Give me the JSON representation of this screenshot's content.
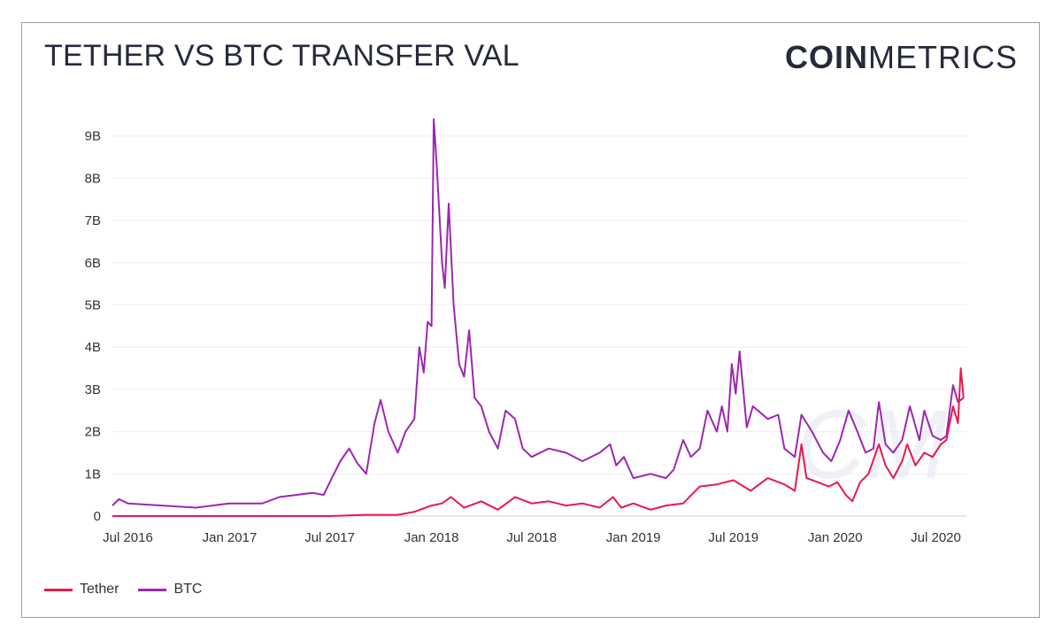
{
  "title": "TETHER VS BTC TRANSFER VAL",
  "logo": {
    "bold": "COIN",
    "light": "METRICS",
    "watermark": "CM"
  },
  "chart_data": {
    "type": "line",
    "title": "TETHER VS BTC TRANSFER VAL",
    "xlabel": "",
    "ylabel": "",
    "ylim": [
      0,
      9.5
    ],
    "yticks": [
      0,
      1,
      2,
      3,
      4,
      5,
      6,
      7,
      8,
      9
    ],
    "ytick_labels": [
      "0",
      "1B",
      "2B",
      "3B",
      "4B",
      "5B",
      "6B",
      "7B",
      "8B",
      "9B"
    ],
    "xticks": [
      "2016-07-01",
      "2017-01-01",
      "2017-07-01",
      "2018-01-01",
      "2018-07-01",
      "2019-01-01",
      "2019-07-01",
      "2020-01-01",
      "2020-07-01"
    ],
    "xtick_labels": [
      "Jul 2016",
      "Jan 2017",
      "Jul 2017",
      "Jan 2018",
      "Jul 2018",
      "Jan 2019",
      "Jul 2019",
      "Jan 2020",
      "Jul 2020"
    ],
    "xlim": [
      "2016-06-03",
      "2020-08-22"
    ],
    "grid": "horizontal",
    "legend": "bottom-left",
    "units": "B (billions USD)",
    "series": [
      {
        "name": "Tether",
        "color": "#e8194f",
        "points": [
          [
            "2016-06-03",
            0.0
          ],
          [
            "2017-07-01",
            0.0
          ],
          [
            "2017-09-01",
            0.03
          ],
          [
            "2017-11-01",
            0.03
          ],
          [
            "2017-12-01",
            0.1
          ],
          [
            "2018-01-01",
            0.25
          ],
          [
            "2018-01-20",
            0.3
          ],
          [
            "2018-02-05",
            0.45
          ],
          [
            "2018-03-01",
            0.2
          ],
          [
            "2018-04-01",
            0.35
          ],
          [
            "2018-05-01",
            0.15
          ],
          [
            "2018-06-01",
            0.45
          ],
          [
            "2018-07-01",
            0.3
          ],
          [
            "2018-08-01",
            0.35
          ],
          [
            "2018-09-01",
            0.25
          ],
          [
            "2018-10-01",
            0.3
          ],
          [
            "2018-11-01",
            0.2
          ],
          [
            "2018-11-25",
            0.45
          ],
          [
            "2018-12-10",
            0.2
          ],
          [
            "2019-01-01",
            0.3
          ],
          [
            "2019-02-01",
            0.15
          ],
          [
            "2019-03-01",
            0.25
          ],
          [
            "2019-04-01",
            0.3
          ],
          [
            "2019-05-01",
            0.7
          ],
          [
            "2019-06-01",
            0.75
          ],
          [
            "2019-07-01",
            0.85
          ],
          [
            "2019-08-01",
            0.6
          ],
          [
            "2019-09-01",
            0.9
          ],
          [
            "2019-10-01",
            0.75
          ],
          [
            "2019-10-20",
            0.6
          ],
          [
            "2019-11-01",
            1.7
          ],
          [
            "2019-11-10",
            0.9
          ],
          [
            "2019-12-01",
            0.8
          ],
          [
            "2019-12-20",
            0.7
          ],
          [
            "2020-01-05",
            0.8
          ],
          [
            "2020-01-20",
            0.5
          ],
          [
            "2020-02-01",
            0.35
          ],
          [
            "2020-02-15",
            0.8
          ],
          [
            "2020-03-01",
            1.0
          ],
          [
            "2020-03-20",
            1.7
          ],
          [
            "2020-04-01",
            1.2
          ],
          [
            "2020-04-15",
            0.9
          ],
          [
            "2020-05-01",
            1.3
          ],
          [
            "2020-05-10",
            1.7
          ],
          [
            "2020-05-25",
            1.2
          ],
          [
            "2020-06-10",
            1.5
          ],
          [
            "2020-06-25",
            1.4
          ],
          [
            "2020-07-10",
            1.7
          ],
          [
            "2020-07-20",
            1.8
          ],
          [
            "2020-08-01",
            2.6
          ],
          [
            "2020-08-10",
            2.2
          ],
          [
            "2020-08-15",
            3.5
          ],
          [
            "2020-08-20",
            2.8
          ]
        ]
      },
      {
        "name": "BTC",
        "color": "#9c27b0",
        "points": [
          [
            "2016-06-03",
            0.25
          ],
          [
            "2016-06-15",
            0.4
          ],
          [
            "2016-07-01",
            0.3
          ],
          [
            "2016-09-01",
            0.25
          ],
          [
            "2016-11-01",
            0.2
          ],
          [
            "2017-01-01",
            0.3
          ],
          [
            "2017-03-01",
            0.3
          ],
          [
            "2017-04-01",
            0.45
          ],
          [
            "2017-05-01",
            0.5
          ],
          [
            "2017-06-01",
            0.55
          ],
          [
            "2017-06-20",
            0.5
          ],
          [
            "2017-07-01",
            0.8
          ],
          [
            "2017-07-20",
            1.3
          ],
          [
            "2017-08-05",
            1.6
          ],
          [
            "2017-08-20",
            1.25
          ],
          [
            "2017-09-05",
            1.0
          ],
          [
            "2017-09-20",
            2.2
          ],
          [
            "2017-10-01",
            2.75
          ],
          [
            "2017-10-15",
            2.0
          ],
          [
            "2017-11-01",
            1.5
          ],
          [
            "2017-11-15",
            2.0
          ],
          [
            "2017-12-01",
            2.3
          ],
          [
            "2017-12-10",
            4.0
          ],
          [
            "2017-12-18",
            3.4
          ],
          [
            "2017-12-25",
            4.6
          ],
          [
            "2018-01-01",
            4.5
          ],
          [
            "2018-01-05",
            9.4
          ],
          [
            "2018-01-10",
            8.4
          ],
          [
            "2018-01-20",
            6.0
          ],
          [
            "2018-01-25",
            5.4
          ],
          [
            "2018-02-01",
            7.4
          ],
          [
            "2018-02-10",
            5.0
          ],
          [
            "2018-02-20",
            3.6
          ],
          [
            "2018-03-01",
            3.3
          ],
          [
            "2018-03-10",
            4.4
          ],
          [
            "2018-03-20",
            2.8
          ],
          [
            "2018-04-01",
            2.6
          ],
          [
            "2018-04-15",
            2.0
          ],
          [
            "2018-05-01",
            1.6
          ],
          [
            "2018-05-15",
            2.5
          ],
          [
            "2018-06-01",
            2.3
          ],
          [
            "2018-06-15",
            1.6
          ],
          [
            "2018-07-01",
            1.4
          ],
          [
            "2018-08-01",
            1.6
          ],
          [
            "2018-09-01",
            1.5
          ],
          [
            "2018-10-01",
            1.3
          ],
          [
            "2018-11-01",
            1.5
          ],
          [
            "2018-11-20",
            1.7
          ],
          [
            "2018-12-01",
            1.2
          ],
          [
            "2018-12-15",
            1.4
          ],
          [
            "2019-01-01",
            0.9
          ],
          [
            "2019-02-01",
            1.0
          ],
          [
            "2019-03-01",
            0.9
          ],
          [
            "2019-03-15",
            1.1
          ],
          [
            "2019-04-01",
            1.8
          ],
          [
            "2019-04-15",
            1.4
          ],
          [
            "2019-05-01",
            1.6
          ],
          [
            "2019-05-15",
            2.5
          ],
          [
            "2019-06-01",
            2.0
          ],
          [
            "2019-06-10",
            2.6
          ],
          [
            "2019-06-20",
            2.0
          ],
          [
            "2019-06-28",
            3.6
          ],
          [
            "2019-07-05",
            2.9
          ],
          [
            "2019-07-12",
            3.9
          ],
          [
            "2019-07-25",
            2.1
          ],
          [
            "2019-08-05",
            2.6
          ],
          [
            "2019-09-01",
            2.3
          ],
          [
            "2019-09-20",
            2.4
          ],
          [
            "2019-10-01",
            1.6
          ],
          [
            "2019-10-20",
            1.4
          ],
          [
            "2019-11-01",
            2.4
          ],
          [
            "2019-11-20",
            2.0
          ],
          [
            "2019-12-10",
            1.5
          ],
          [
            "2019-12-25",
            1.3
          ],
          [
            "2020-01-10",
            1.8
          ],
          [
            "2020-01-25",
            2.5
          ],
          [
            "2020-02-10",
            2.0
          ],
          [
            "2020-02-25",
            1.5
          ],
          [
            "2020-03-10",
            1.6
          ],
          [
            "2020-03-20",
            2.7
          ],
          [
            "2020-04-01",
            1.7
          ],
          [
            "2020-04-15",
            1.5
          ],
          [
            "2020-05-01",
            1.8
          ],
          [
            "2020-05-15",
            2.6
          ],
          [
            "2020-06-01",
            1.8
          ],
          [
            "2020-06-10",
            2.5
          ],
          [
            "2020-06-25",
            1.9
          ],
          [
            "2020-07-10",
            1.8
          ],
          [
            "2020-07-20",
            1.9
          ],
          [
            "2020-08-01",
            3.1
          ],
          [
            "2020-08-10",
            2.7
          ],
          [
            "2020-08-20",
            2.8
          ]
        ]
      }
    ]
  }
}
